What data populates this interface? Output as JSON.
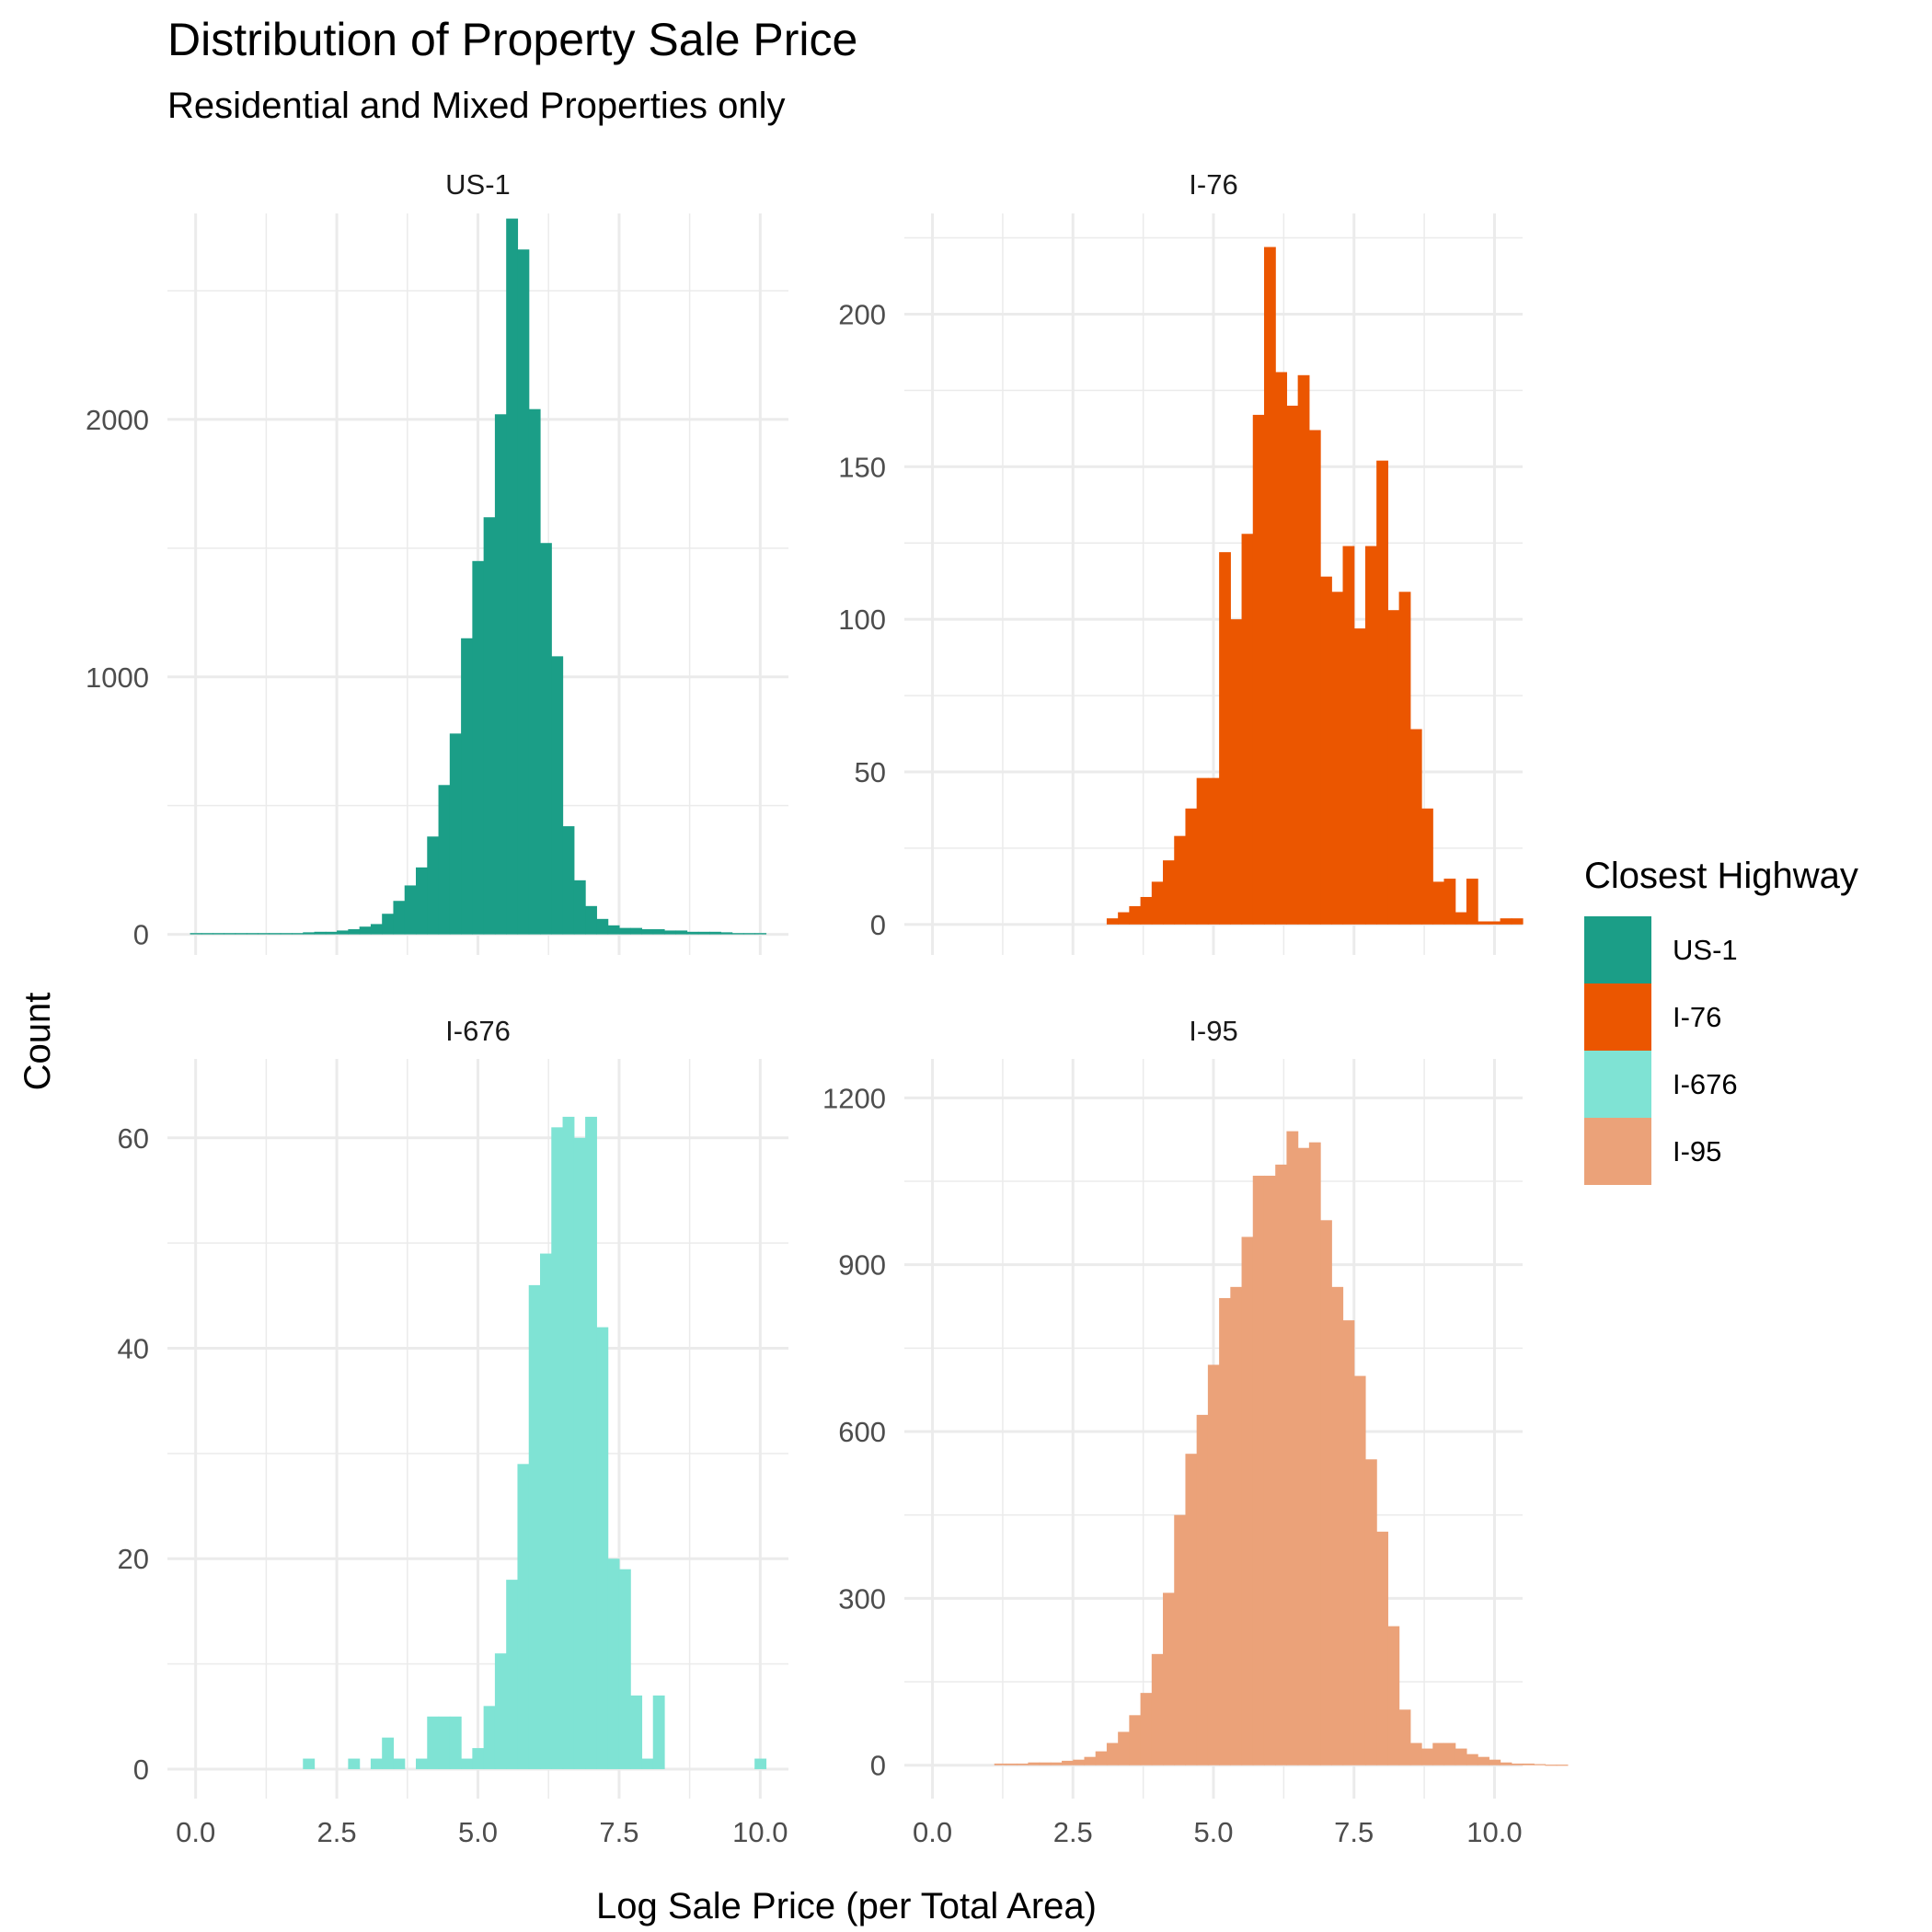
{
  "chart_data": {
    "type": "bar",
    "title": "Distribution of Property Sale Price",
    "subtitle": "Residential and Mixed Properties only",
    "xlabel": "Log Sale Price (per Total Area)",
    "ylabel": "Count",
    "grid": true,
    "legend": {
      "title": "Closest Highway",
      "position": "right",
      "entries": [
        {
          "label": "US-1",
          "color": "#1B9E87"
        },
        {
          "label": "I-76",
          "color": "#EB5600"
        },
        {
          "label": "I-676",
          "color": "#7FE3D4"
        },
        {
          "label": "I-95",
          "color": "#EBA279"
        }
      ]
    },
    "x_ticks": [
      "0.0",
      "2.5",
      "5.0",
      "7.5",
      "10.0"
    ],
    "xlim": [
      -0.5,
      10.5
    ],
    "bins_start": -0.1,
    "bin_width": 0.2,
    "panels": [
      {
        "name": "US-1",
        "color": "#1B9E87",
        "ylim": [
          -80,
          2800
        ],
        "y_ticks": [
          0,
          1000,
          2000
        ],
        "y_tick_labels": [
          "0",
          "1000",
          "2000"
        ],
        "values": [
          5,
          5,
          5,
          5,
          5,
          5,
          5,
          5,
          5,
          5,
          8,
          10,
          10,
          15,
          20,
          30,
          40,
          80,
          130,
          190,
          260,
          380,
          580,
          780,
          1150,
          1450,
          1620,
          2020,
          2780,
          2660,
          2040,
          1520,
          1080,
          420,
          210,
          110,
          60,
          35,
          25,
          25,
          20,
          20,
          15,
          15,
          10,
          10,
          10,
          8,
          5,
          5,
          5
        ]
      },
      {
        "name": "I-76",
        "color": "#EB5600",
        "ylim": [
          -10,
          233
        ],
        "y_ticks": [
          0,
          50,
          100,
          150,
          200
        ],
        "y_tick_labels": [
          "0",
          "50",
          "100",
          "150",
          "200"
        ],
        "values": [
          0,
          0,
          0,
          0,
          0,
          0,
          0,
          0,
          0,
          0,
          0,
          0,
          0,
          0,
          0,
          0,
          2,
          4,
          6,
          9,
          14,
          21,
          29,
          38,
          48,
          48,
          122,
          100,
          128,
          167,
          222,
          181,
          170,
          180,
          162,
          114,
          109,
          124,
          97,
          124,
          152,
          103,
          109,
          64,
          38,
          14,
          15,
          4,
          15,
          1,
          1,
          2,
          2,
          0,
          0,
          0,
          0
        ]
      },
      {
        "name": "I-676",
        "color": "#7FE3D4",
        "ylim": [
          -2.8,
          67.5
        ],
        "y_ticks": [
          0,
          20,
          40,
          60
        ],
        "y_tick_labels": [
          "0",
          "20",
          "40",
          "60"
        ],
        "values": [
          0,
          0,
          0,
          0,
          0,
          0,
          0,
          0,
          0,
          0,
          1,
          0,
          0,
          0,
          1,
          0,
          1,
          3,
          1,
          0,
          1,
          5,
          5,
          5,
          1,
          2,
          6,
          11,
          18,
          29,
          46,
          49,
          61,
          62,
          60,
          62,
          42,
          20,
          19,
          7,
          1,
          7,
          0,
          0,
          0,
          0,
          0,
          0,
          0,
          0,
          1
        ]
      },
      {
        "name": "I-95",
        "color": "#EBA279",
        "ylim": [
          -60,
          1270
        ],
        "y_ticks": [
          0,
          300,
          600,
          900,
          1200
        ],
        "y_tick_labels": [
          "0",
          "300",
          "600",
          "900",
          "1200"
        ],
        "values": [
          0,
          0,
          0,
          0,
          0,
          0,
          3,
          3,
          3,
          5,
          5,
          5,
          8,
          10,
          15,
          25,
          40,
          60,
          90,
          130,
          200,
          310,
          450,
          560,
          630,
          720,
          840,
          860,
          950,
          1060,
          1060,
          1080,
          1140,
          1110,
          1120,
          980,
          860,
          800,
          700,
          550,
          420,
          250,
          100,
          40,
          30,
          40,
          40,
          30,
          20,
          15,
          10,
          5,
          3,
          3,
          2,
          1,
          1
        ]
      }
    ]
  }
}
